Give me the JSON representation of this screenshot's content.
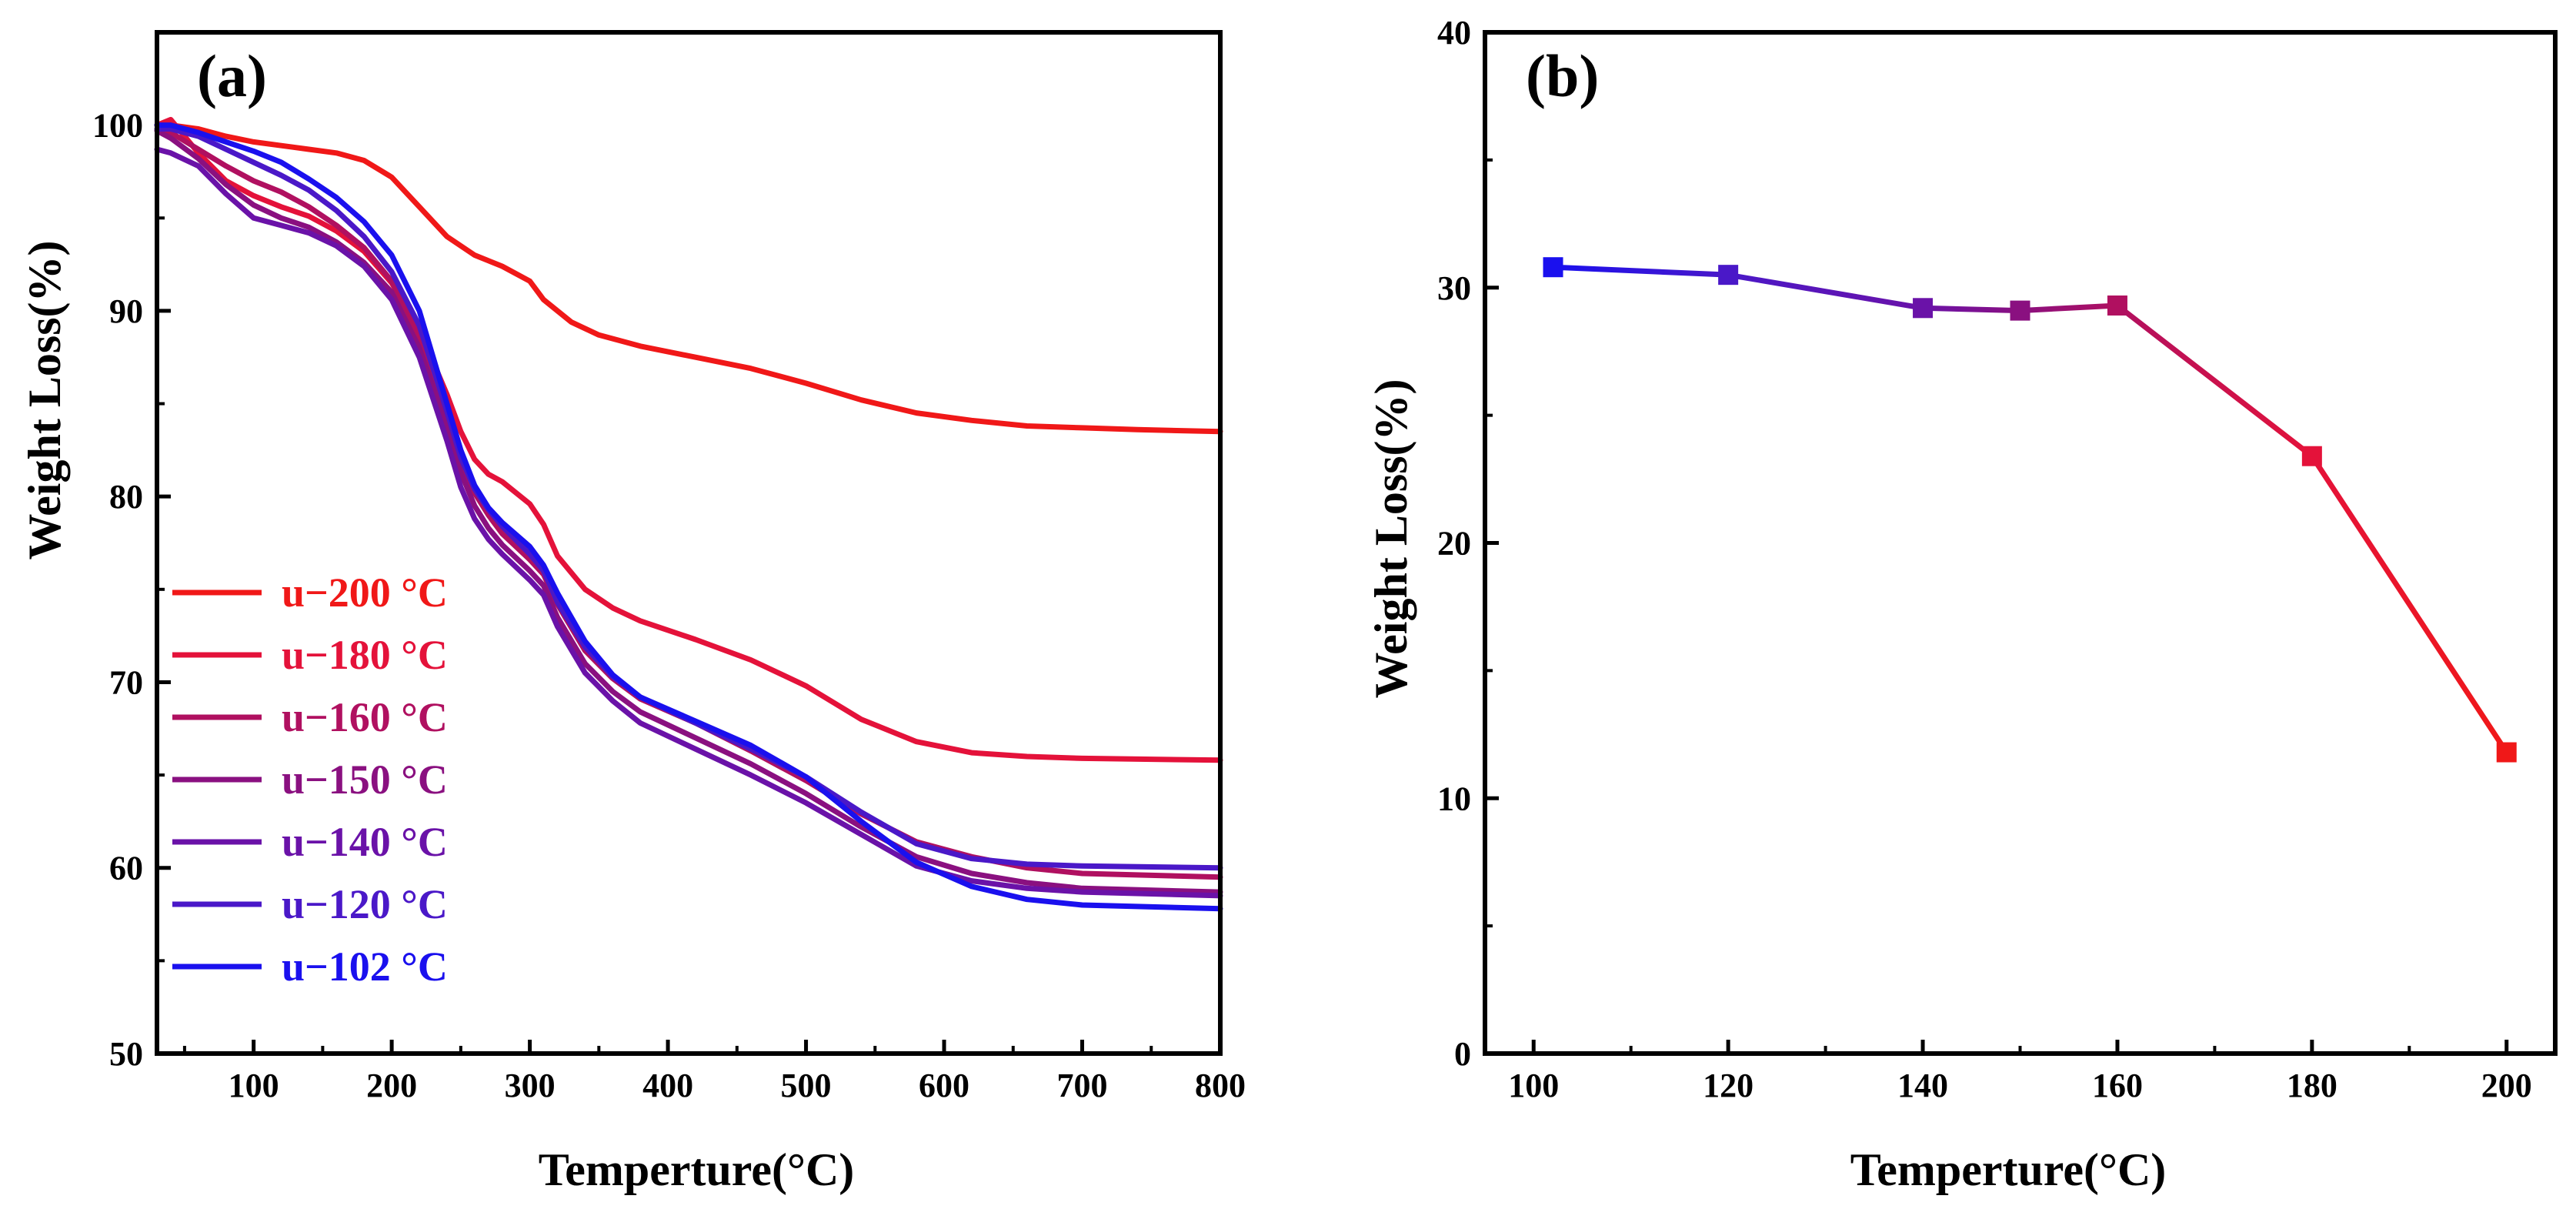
{
  "chart_data": [
    {
      "panel_label": "(a)",
      "type": "line",
      "xlabel": "Temperture(°C)",
      "ylabel": "Weight Loss(%)",
      "xlim": [
        30,
        800
      ],
      "ylim": [
        50,
        105
      ],
      "xticks": [
        100,
        200,
        300,
        400,
        500,
        600,
        700,
        800
      ],
      "yticks": [
        50,
        60,
        70,
        80,
        90,
        100
      ],
      "legend_position": "bottom-left",
      "series": [
        {
          "name": "u−200 °C",
          "color": "#f01818",
          "x": [
            30,
            40,
            60,
            80,
            100,
            120,
            140,
            160,
            180,
            200,
            220,
            240,
            260,
            280,
            300,
            310,
            330,
            350,
            380,
            420,
            460,
            500,
            540,
            580,
            620,
            660,
            700,
            740,
            800
          ],
          "y": [
            100,
            100,
            99.8,
            99.4,
            99.1,
            98.9,
            98.7,
            98.5,
            98.1,
            97.2,
            95.6,
            94,
            93,
            92.4,
            91.6,
            90.6,
            89.4,
            88.7,
            88.1,
            87.5,
            86.9,
            86.1,
            85.2,
            84.5,
            84.1,
            83.8,
            83.7,
            83.6,
            83.5
          ]
        },
        {
          "name": "u−180 °C",
          "color": "#e4123a",
          "x": [
            30,
            40,
            60,
            80,
            100,
            120,
            140,
            160,
            180,
            200,
            220,
            240,
            250,
            260,
            270,
            280,
            300,
            310,
            320,
            340,
            360,
            380,
            420,
            460,
            500,
            540,
            580,
            620,
            660,
            700,
            800
          ],
          "y": [
            100,
            100.3,
            98.5,
            97,
            96.2,
            95.6,
            95.1,
            94.3,
            93.2,
            91.5,
            89,
            85.5,
            83.5,
            82,
            81.2,
            80.8,
            79.6,
            78.5,
            76.8,
            75,
            74,
            73.3,
            72.3,
            71.2,
            69.8,
            68,
            66.8,
            66.2,
            66,
            65.9,
            65.8
          ]
        },
        {
          "name": "u−160 °C",
          "color": "#b01060",
          "x": [
            30,
            40,
            60,
            80,
            100,
            120,
            140,
            160,
            180,
            200,
            220,
            240,
            250,
            260,
            270,
            280,
            300,
            310,
            320,
            340,
            360,
            380,
            420,
            460,
            500,
            540,
            580,
            620,
            660,
            700,
            800
          ],
          "y": [
            100,
            99.6,
            98.7,
            97.8,
            97,
            96.4,
            95.6,
            94.6,
            93.4,
            91.6,
            88.6,
            84.5,
            82,
            80.2,
            79,
            78,
            76.6,
            75.8,
            74.2,
            71.7,
            70.2,
            69.1,
            67.8,
            66.3,
            64.7,
            62.9,
            61.4,
            60.6,
            60,
            59.7,
            59.5
          ]
        },
        {
          "name": "u−150 °C",
          "color": "#8a1080",
          "x": [
            30,
            40,
            60,
            80,
            100,
            120,
            140,
            160,
            180,
            200,
            220,
            240,
            250,
            260,
            270,
            280,
            300,
            310,
            320,
            340,
            360,
            380,
            420,
            460,
            500,
            540,
            580,
            620,
            660,
            700,
            800
          ],
          "y": [
            99.7,
            99.3,
            98.2,
            96.8,
            95.7,
            95,
            94.5,
            93.7,
            92.6,
            91,
            88,
            83.8,
            81.3,
            79.5,
            78.3,
            77.4,
            76,
            75.2,
            73.5,
            71,
            69.5,
            68.4,
            67,
            65.6,
            64,
            62.2,
            60.6,
            59.7,
            59.2,
            58.9,
            58.7
          ]
        },
        {
          "name": "u−140 °C",
          "color": "#6a12a8",
          "x": [
            30,
            40,
            60,
            80,
            100,
            120,
            140,
            160,
            180,
            200,
            220,
            240,
            250,
            260,
            270,
            280,
            300,
            310,
            320,
            340,
            360,
            380,
            420,
            460,
            500,
            540,
            580,
            620,
            660,
            700,
            800
          ],
          "y": [
            98.7,
            98.5,
            97.8,
            96.3,
            95,
            94.6,
            94.2,
            93.5,
            92.4,
            90.6,
            87.5,
            83,
            80.5,
            78.8,
            77.7,
            76.9,
            75.5,
            74.7,
            73,
            70.5,
            69,
            67.8,
            66.4,
            65,
            63.5,
            61.8,
            60.1,
            59.3,
            58.9,
            58.7,
            58.5
          ]
        },
        {
          "name": "u−120 °C",
          "color": "#4a18c8",
          "x": [
            30,
            40,
            60,
            80,
            100,
            120,
            140,
            160,
            180,
            200,
            220,
            240,
            250,
            260,
            270,
            280,
            300,
            310,
            320,
            340,
            360,
            380,
            420,
            460,
            500,
            540,
            580,
            620,
            660,
            700,
            800
          ],
          "y": [
            99.8,
            99.8,
            99.4,
            98.7,
            98,
            97.3,
            96.5,
            95.4,
            94,
            92.1,
            89.2,
            84.6,
            82.1,
            80.4,
            79.3,
            78.4,
            76.9,
            76,
            74.3,
            71.9,
            70.3,
            69.2,
            67.8,
            66.4,
            64.9,
            63,
            61.3,
            60.5,
            60.2,
            60.1,
            60
          ]
        },
        {
          "name": "u−102 °C",
          "color": "#1a10ee",
          "x": [
            30,
            40,
            60,
            80,
            100,
            120,
            140,
            160,
            180,
            200,
            220,
            240,
            250,
            260,
            270,
            280,
            300,
            310,
            320,
            340,
            360,
            380,
            420,
            460,
            500,
            540,
            580,
            620,
            660,
            700,
            800
          ],
          "y": [
            100,
            100,
            99.6,
            99.1,
            98.6,
            98,
            97.1,
            96.1,
            94.8,
            93,
            90,
            85,
            82.5,
            80.6,
            79.4,
            78.6,
            77.3,
            76.3,
            74.8,
            72.2,
            70.4,
            69.2,
            67.9,
            66.6,
            64.9,
            62.5,
            60.3,
            59,
            58.3,
            58,
            57.8
          ]
        }
      ]
    },
    {
      "panel_label": "(b)",
      "type": "line",
      "xlabel": "Temperture(°C)",
      "ylabel": "Weight Loss(%)",
      "xlim": [
        95,
        205
      ],
      "ylim": [
        0,
        40
      ],
      "xticks": [
        100,
        120,
        140,
        160,
        180,
        200
      ],
      "yticks": [
        0,
        10,
        20,
        30,
        40
      ],
      "x": [
        102,
        120,
        140,
        150,
        160,
        180,
        200
      ],
      "y": [
        30.8,
        30.5,
        29.2,
        29.1,
        29.3,
        23.4,
        11.8
      ],
      "point_colors": [
        "#1a10ee",
        "#4a18c8",
        "#6a12a8",
        "#8a1080",
        "#b01060",
        "#e4123a",
        "#f01818"
      ]
    }
  ]
}
